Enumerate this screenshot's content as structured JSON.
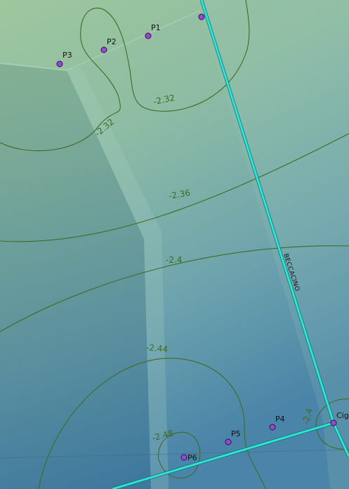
{
  "map": {
    "road_name": "BECCACINO",
    "contour_labels": {
      "c1": "-2.32",
      "c2": "-2.32",
      "c3": "-2.36",
      "c4": "-2.4",
      "c5": "-2.44",
      "c6": "-2.48",
      "c7": "-2.4"
    },
    "points": {
      "p1": "P1",
      "p2": "P2",
      "p3": "P3",
      "p4": "P4",
      "p5": "P5",
      "p6": "P6",
      "cig": "Cig"
    },
    "colors": {
      "contour": "#3f6b22",
      "road": "#32e4d6",
      "point": "#9a47d8"
    }
  }
}
